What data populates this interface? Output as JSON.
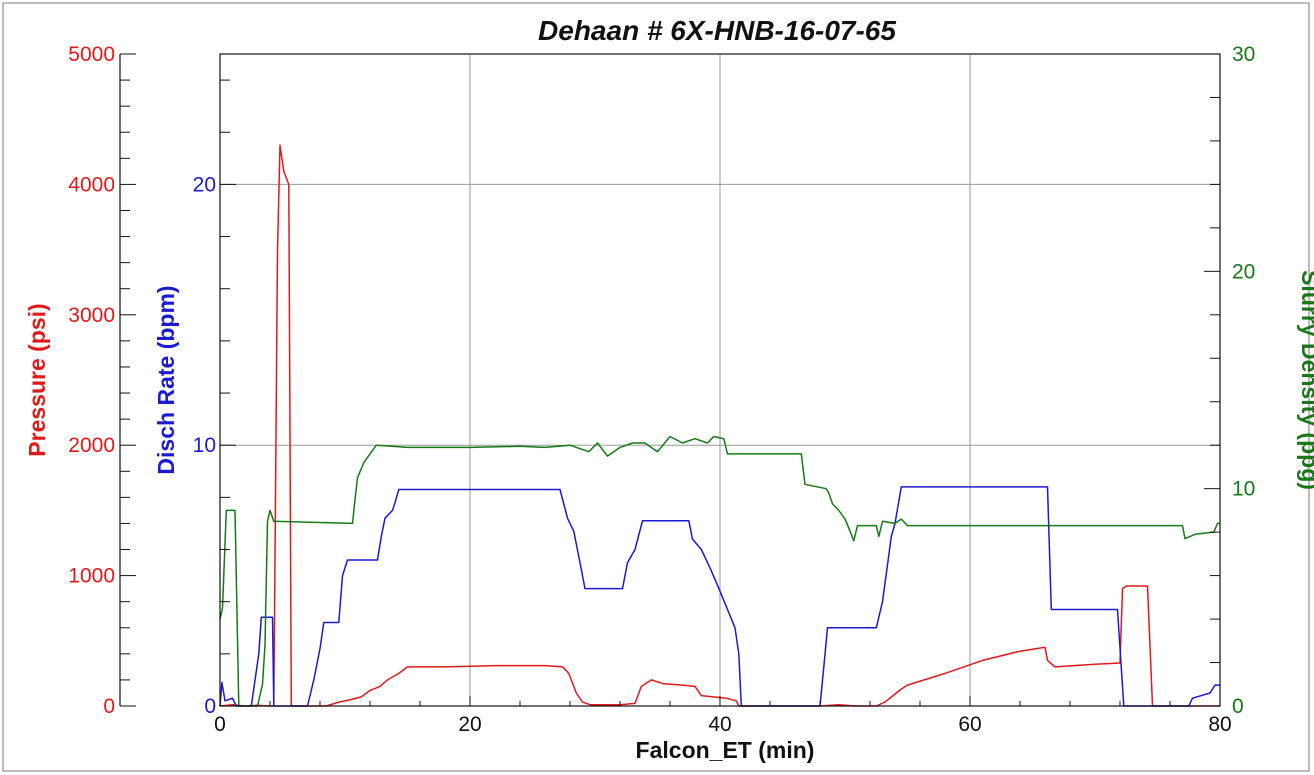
{
  "chart_data": {
    "type": "line",
    "title": "Dehaan # 6X-HNB-16-07-65",
    "xlabel": "Falcon_ET (min)",
    "xlim": [
      0,
      80
    ],
    "x_ticks": [
      "0",
      "20",
      "40",
      "60",
      "80"
    ],
    "grid": true,
    "axes": {
      "pressure": {
        "label": "Pressure (psi)",
        "range": [
          0,
          5000
        ],
        "ticks": [
          "0",
          "1000",
          "2000",
          "3000",
          "4000",
          "5000"
        ],
        "color": "#e01a1a"
      },
      "rate": {
        "label": "Disch Rate (bpm)",
        "range": [
          0,
          25
        ],
        "ticks": [
          "0",
          "10",
          "20"
        ],
        "color": "#1a1ad0"
      },
      "density": {
        "label": "Slurry Density (ppg)",
        "range": [
          0,
          30
        ],
        "ticks": [
          "0",
          "10",
          "20",
          "30"
        ],
        "color": "#157a15"
      }
    },
    "series": [
      {
        "axis": "pressure",
        "color": "#e01a1a",
        "points": [
          [
            0,
            0
          ],
          [
            1,
            10
          ],
          [
            2,
            0
          ],
          [
            3,
            5
          ],
          [
            3.8,
            0
          ],
          [
            4.3,
            0
          ],
          [
            4.6,
            3500
          ],
          [
            4.8,
            4300
          ],
          [
            5.1,
            4100
          ],
          [
            5.5,
            4000
          ],
          [
            5.7,
            0
          ],
          [
            8.5,
            0
          ],
          [
            9.5,
            30
          ],
          [
            10.5,
            50
          ],
          [
            11.3,
            70
          ],
          [
            12,
            120
          ],
          [
            12.8,
            150
          ],
          [
            13.4,
            200
          ],
          [
            14.3,
            250
          ],
          [
            15,
            300
          ],
          [
            18,
            300
          ],
          [
            22,
            310
          ],
          [
            26,
            310
          ],
          [
            27.4,
            300
          ],
          [
            27.9,
            250
          ],
          [
            28.5,
            100
          ],
          [
            29,
            30
          ],
          [
            29.6,
            10
          ],
          [
            32,
            10
          ],
          [
            33.2,
            20
          ],
          [
            33.7,
            150
          ],
          [
            34.5,
            200
          ],
          [
            35.5,
            170
          ],
          [
            37,
            160
          ],
          [
            38,
            150
          ],
          [
            38.5,
            80
          ],
          [
            40.5,
            60
          ],
          [
            41.3,
            40
          ],
          [
            41.5,
            0
          ],
          [
            48,
            0
          ],
          [
            49.5,
            10
          ],
          [
            50.8,
            0
          ],
          [
            52.5,
            0
          ],
          [
            53.2,
            30
          ],
          [
            54.5,
            130
          ],
          [
            55,
            160
          ],
          [
            58,
            250
          ],
          [
            61,
            350
          ],
          [
            64,
            420
          ],
          [
            66,
            450
          ],
          [
            66.2,
            350
          ],
          [
            66.8,
            300
          ],
          [
            70,
            320
          ],
          [
            72,
            330
          ],
          [
            72.2,
            900
          ],
          [
            72.5,
            920
          ],
          [
            74.2,
            920
          ],
          [
            74.6,
            0
          ],
          [
            80,
            0
          ]
        ]
      },
      {
        "axis": "rate",
        "color": "#1a1ad0",
        "points": [
          [
            0,
            0
          ],
          [
            0.15,
            0.9
          ],
          [
            0.4,
            0.2
          ],
          [
            1,
            0.3
          ],
          [
            1.3,
            0
          ],
          [
            2.5,
            0
          ],
          [
            3.1,
            2
          ],
          [
            3.3,
            3.4
          ],
          [
            4.2,
            3.4
          ],
          [
            4.3,
            0
          ],
          [
            7,
            0
          ],
          [
            7.5,
            1
          ],
          [
            8,
            2.2
          ],
          [
            8.3,
            3.2
          ],
          [
            9.5,
            3.2
          ],
          [
            9.8,
            5
          ],
          [
            10.2,
            5.6
          ],
          [
            11,
            5.6
          ],
          [
            12.6,
            5.6
          ],
          [
            12.9,
            6.5
          ],
          [
            13.2,
            7.2
          ],
          [
            13.8,
            7.5
          ],
          [
            14,
            7.8
          ],
          [
            14.3,
            8.3
          ],
          [
            20,
            8.3
          ],
          [
            27.2,
            8.3
          ],
          [
            27.8,
            7.2
          ],
          [
            28.3,
            6.7
          ],
          [
            28.8,
            5.5
          ],
          [
            29.2,
            4.5
          ],
          [
            31,
            4.5
          ],
          [
            32.2,
            4.5
          ],
          [
            32.6,
            5.5
          ],
          [
            33.2,
            6
          ],
          [
            33.8,
            7.1
          ],
          [
            37.5,
            7.1
          ],
          [
            37.8,
            6.4
          ],
          [
            38.5,
            6
          ],
          [
            39.2,
            5.3
          ],
          [
            40,
            4.4
          ],
          [
            41.2,
            3
          ],
          [
            41.5,
            2
          ],
          [
            41.7,
            0
          ],
          [
            48,
            0
          ],
          [
            48.3,
            1.5
          ],
          [
            48.6,
            3
          ],
          [
            52.5,
            3
          ],
          [
            53,
            4
          ],
          [
            53.7,
            6.5
          ],
          [
            54,
            7
          ],
          [
            54.5,
            8.4
          ],
          [
            66.2,
            8.4
          ],
          [
            66.5,
            3.7
          ],
          [
            71.8,
            3.7
          ],
          [
            72.3,
            0
          ],
          [
            77.5,
            0
          ],
          [
            77.8,
            0.3
          ],
          [
            79.2,
            0.5
          ],
          [
            79.6,
            0.8
          ],
          [
            80,
            0.8
          ]
        ]
      },
      {
        "axis": "density",
        "color": "#157a15",
        "points": [
          [
            0,
            4
          ],
          [
            0.2,
            4.5
          ],
          [
            0.5,
            9
          ],
          [
            1.2,
            9
          ],
          [
            1.5,
            0
          ],
          [
            3,
            0
          ],
          [
            3.4,
            1
          ],
          [
            3.6,
            2.8
          ],
          [
            3.8,
            8.5
          ],
          [
            4,
            9
          ],
          [
            4.3,
            8.5
          ],
          [
            10.6,
            8.4
          ],
          [
            10.8,
            9.5
          ],
          [
            11,
            10.5
          ],
          [
            11.5,
            11.2
          ],
          [
            12,
            11.6
          ],
          [
            12.5,
            12
          ],
          [
            15,
            11.9
          ],
          [
            20,
            11.9
          ],
          [
            24,
            11.95
          ],
          [
            26,
            11.9
          ],
          [
            28,
            12
          ],
          [
            29.5,
            11.7
          ],
          [
            30.2,
            12.1
          ],
          [
            31,
            11.5
          ],
          [
            32,
            11.9
          ],
          [
            33,
            12.1
          ],
          [
            34,
            12.1
          ],
          [
            35,
            11.7
          ],
          [
            36,
            12.4
          ],
          [
            37,
            12.1
          ],
          [
            38,
            12.3
          ],
          [
            39,
            12.1
          ],
          [
            39.5,
            12.4
          ],
          [
            40.3,
            12.3
          ],
          [
            40.6,
            11.6
          ],
          [
            42,
            11.6
          ],
          [
            44,
            11.6
          ],
          [
            46.5,
            11.6
          ],
          [
            46.8,
            10.2
          ],
          [
            48.5,
            10
          ],
          [
            48.7,
            9.8
          ],
          [
            49,
            9.3
          ],
          [
            49.5,
            9
          ],
          [
            50,
            8.6
          ],
          [
            50.3,
            8.2
          ],
          [
            50.7,
            7.6
          ],
          [
            51,
            8.3
          ],
          [
            52.5,
            8.3
          ],
          [
            52.7,
            7.8
          ],
          [
            53,
            8.5
          ],
          [
            54,
            8.4
          ],
          [
            54.5,
            8.6
          ],
          [
            55,
            8.3
          ],
          [
            66,
            8.3
          ],
          [
            77,
            8.3
          ],
          [
            77.2,
            7.7
          ],
          [
            78,
            7.9
          ],
          [
            79.5,
            8
          ],
          [
            79.8,
            8.4
          ],
          [
            80,
            8.4
          ]
        ]
      }
    ]
  }
}
